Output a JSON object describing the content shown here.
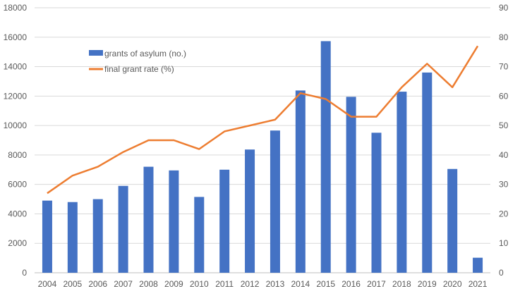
{
  "chart_data": {
    "type": "bar",
    "title": "",
    "categories": [
      "2004",
      "2005",
      "2006",
      "2007",
      "2008",
      "2009",
      "2010",
      "2011",
      "2012",
      "2013",
      "2014",
      "2015",
      "2016",
      "2017",
      "2018",
      "2019",
      "2020",
      "2021"
    ],
    "series": [
      {
        "name": "grants of asylum (no.)",
        "type": "bar",
        "axis": "left",
        "color": "#4472C4",
        "values": [
          4900,
          4800,
          5000,
          5900,
          7200,
          6950,
          5150,
          7000,
          8370,
          9660,
          12380,
          15730,
          11950,
          9510,
          12300,
          13600,
          7050,
          1020
        ]
      },
      {
        "name": "final grant rate (%)",
        "type": "line",
        "axis": "right",
        "color": "#ED7D31",
        "values": [
          27,
          33,
          36,
          41,
          45,
          45,
          42,
          48,
          50,
          52,
          61,
          59,
          53,
          53,
          63,
          71,
          63,
          77
        ]
      }
    ],
    "y_left": {
      "range": [
        0,
        18000
      ],
      "ticks": [
        "0",
        "2000",
        "4000",
        "6000",
        "8000",
        "10000",
        "12000",
        "14000",
        "16000",
        "18000"
      ]
    },
    "y_right": {
      "range": [
        0,
        90
      ],
      "ticks": [
        "0",
        "10",
        "20",
        "30",
        "40",
        "50",
        "60",
        "70",
        "80",
        "90"
      ]
    },
    "xlabel": "",
    "ylabel": "",
    "grid": true,
    "legend_position": "top-left"
  }
}
